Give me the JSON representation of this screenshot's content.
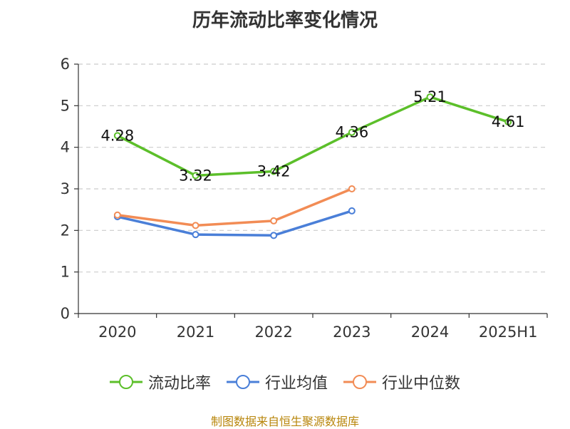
{
  "chart_data": {
    "type": "line",
    "title": "历年流动比率变化情况",
    "categories": [
      "2020",
      "2021",
      "2022",
      "2023",
      "2024",
      "2025H1"
    ],
    "yticks": [
      "0",
      "1",
      "2",
      "3",
      "4",
      "5",
      "6"
    ],
    "ylim": [
      0,
      6
    ],
    "grid": true,
    "legend_placement": "bottom",
    "series": [
      {
        "name": "流动比率",
        "color": "#5cbf2a",
        "values": [
          4.28,
          3.32,
          3.42,
          4.36,
          5.21,
          4.61
        ],
        "labels": [
          "4.28",
          "3.32",
          "3.42",
          "4.36",
          "5.21",
          "4.61"
        ]
      },
      {
        "name": "行业均值",
        "color": "#4a7fd8",
        "values": [
          2.33,
          1.9,
          1.88,
          2.47,
          null,
          null
        ]
      },
      {
        "name": "行业中位数",
        "color": "#f28c55",
        "values": [
          2.37,
          2.12,
          2.23,
          3.0,
          null,
          null
        ]
      }
    ],
    "source": "制图数据来自恒生聚源数据库"
  }
}
